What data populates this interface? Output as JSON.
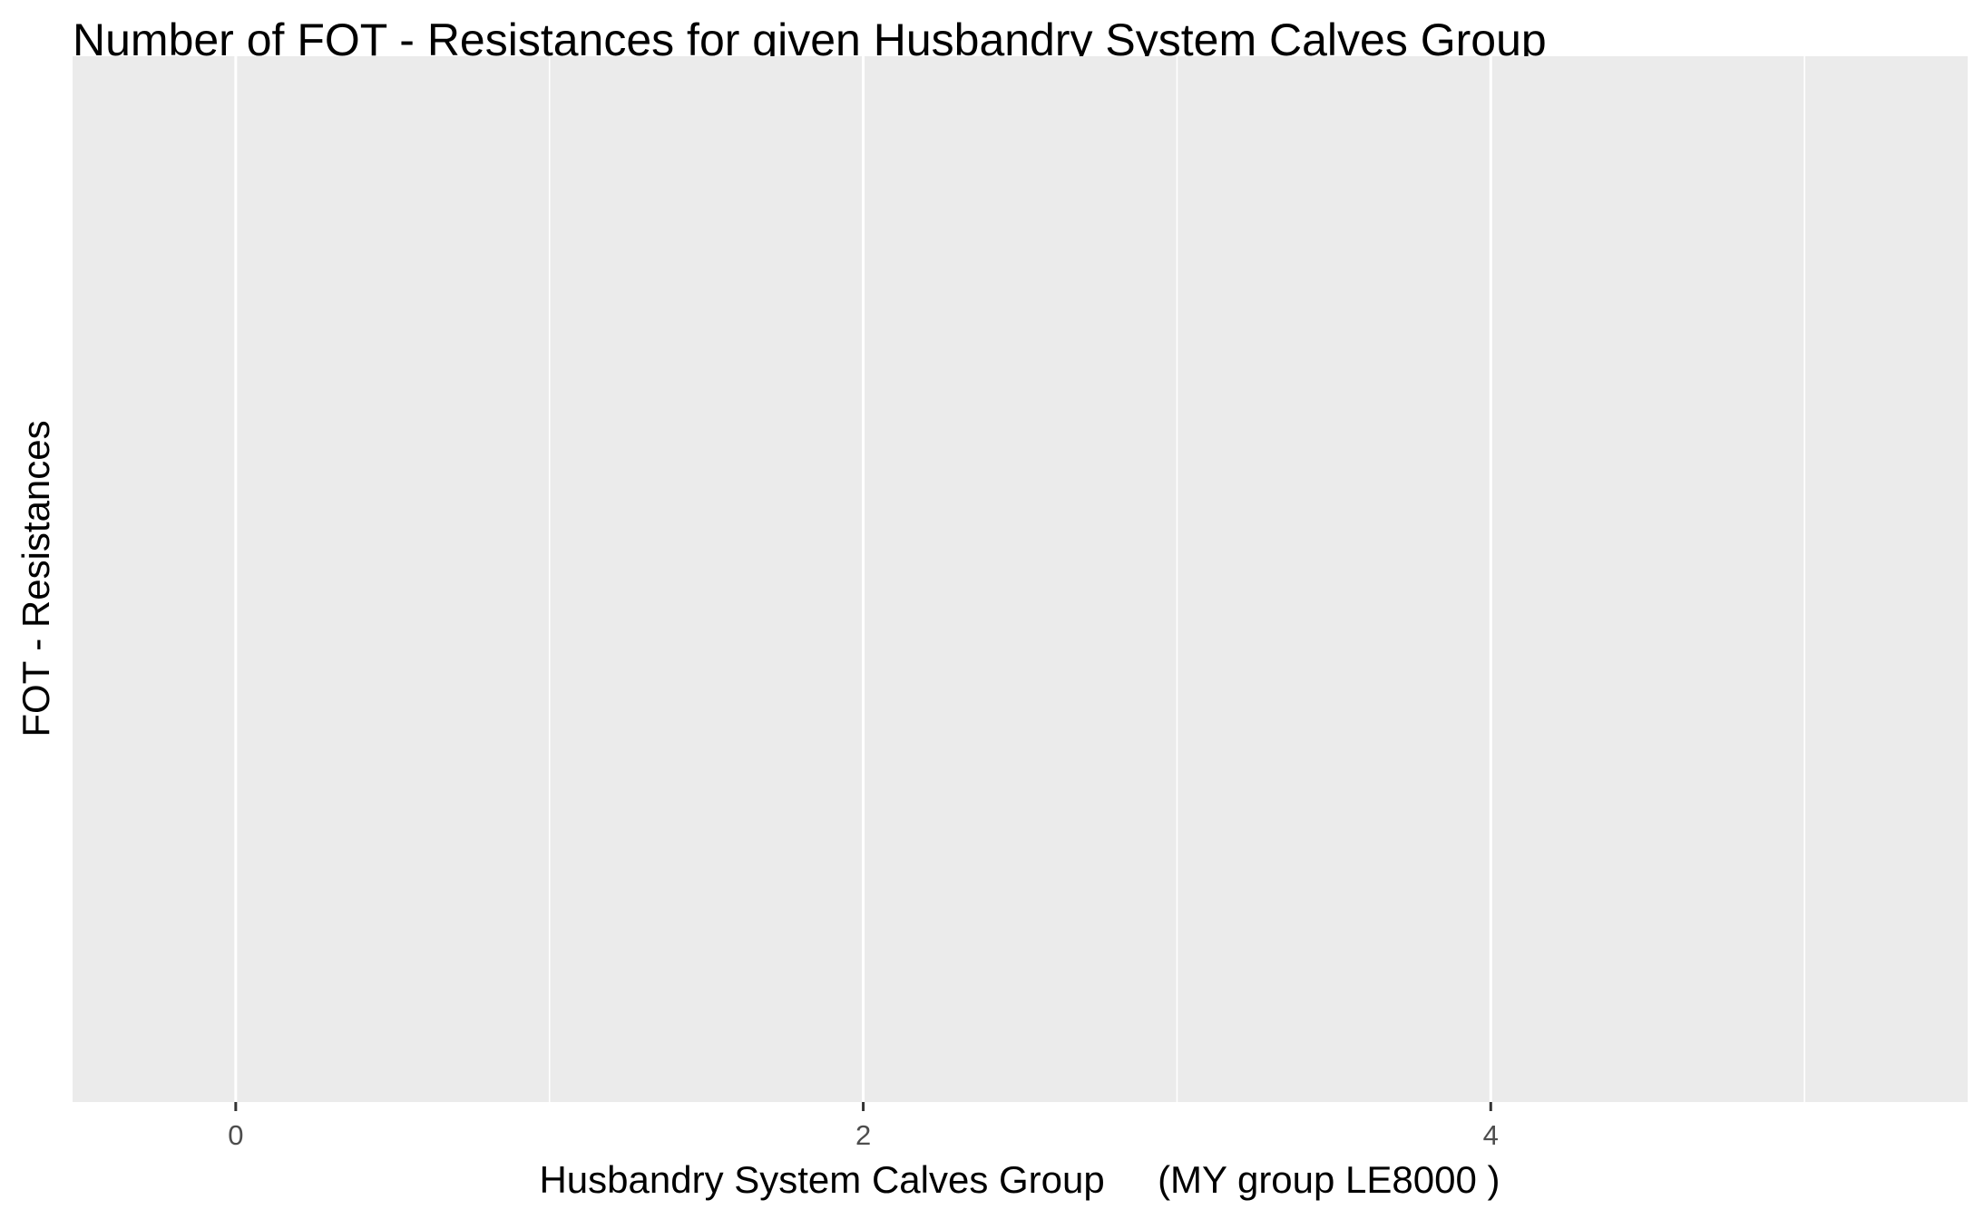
{
  "chart_data": {
    "type": "bar",
    "title": "Number of FOT - Resistances for given Husbandry System Calves Group",
    "xlabel": "Husbandry System Calves Group     (MY group LE8000 )",
    "ylabel": "FOT - Resistances",
    "xlim": [
      -0.52,
      5.52
    ],
    "x_ticks": [
      0,
      2,
      4
    ],
    "x_tick_labels": [
      "0",
      "2",
      "4"
    ],
    "x_minor_ticks": [
      1,
      3,
      5
    ],
    "categories": [],
    "values": [],
    "grid": true,
    "legend": "none",
    "colors": {
      "panel_background": "#ebebeb",
      "gridline": "#ffffff",
      "tick_text": "#4d4d4d",
      "tick_mark": "#333333",
      "text": "#000000"
    }
  }
}
